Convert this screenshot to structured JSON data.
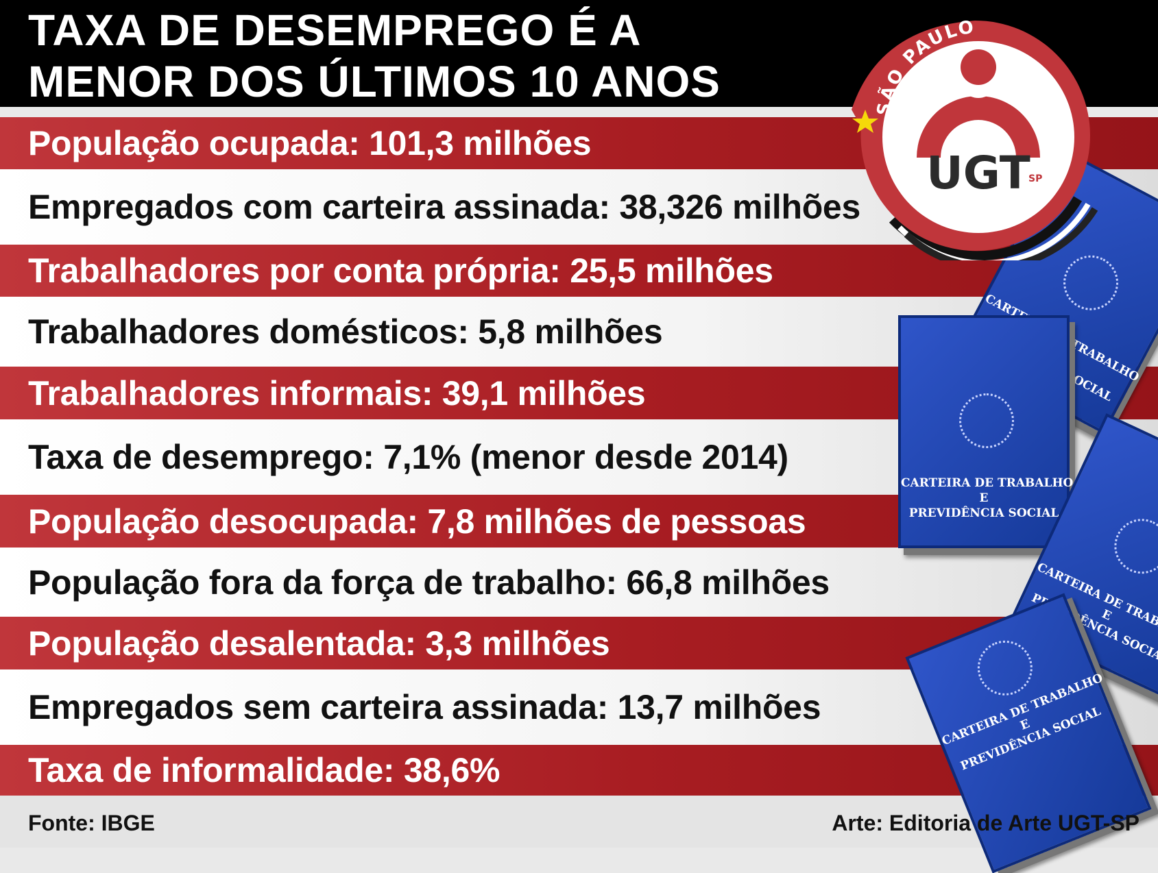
{
  "header": {
    "title_line1": "TAXA DE DESEMPREGO É A",
    "title_line2": "MENOR DOS ÚLTIMOS 10 ANOS"
  },
  "rows": [
    {
      "text": "População ocupada: 101,3 milhões",
      "style": "red"
    },
    {
      "text": "Empregados com carteira assinada: 38,326 milhões",
      "style": "white"
    },
    {
      "text": "Trabalhadores por conta própria: 25,5 milhões",
      "style": "red"
    },
    {
      "text": "Trabalhadores domésticos: 5,8 milhões",
      "style": "white"
    },
    {
      "text": "Trabalhadores informais: 39,1 milhões",
      "style": "red"
    },
    {
      "text": "Taxa de desemprego: 7,1% (menor desde 2014)",
      "style": "white"
    },
    {
      "text": "População desocupada: 7,8 milhões de pessoas",
      "style": "red"
    },
    {
      "text": "População fora da força de trabalho: 66,8 milhões",
      "style": "white"
    },
    {
      "text": "População desalentada: 3,3 milhões",
      "style": "red"
    },
    {
      "text": "Empregados sem carteira assinada: 13,7 milhões",
      "style": "white"
    },
    {
      "text": "Taxa de informalidade: 38,6%",
      "style": "red"
    }
  ],
  "footer": {
    "source": "Fonte: IBGE",
    "credit": "Arte: Editoria de Arte UGT-SP"
  },
  "logo": {
    "arc_text": "SÃO PAULO",
    "name": "UGT",
    "sub": "SP"
  },
  "book": {
    "title": "CARTEIRA DE TRABALHO\nE\nPREVIDÊNCIA SOCIAL"
  },
  "colors": {
    "red": "#a81d22",
    "black": "#000000",
    "book_blue": "#1f45b0"
  }
}
